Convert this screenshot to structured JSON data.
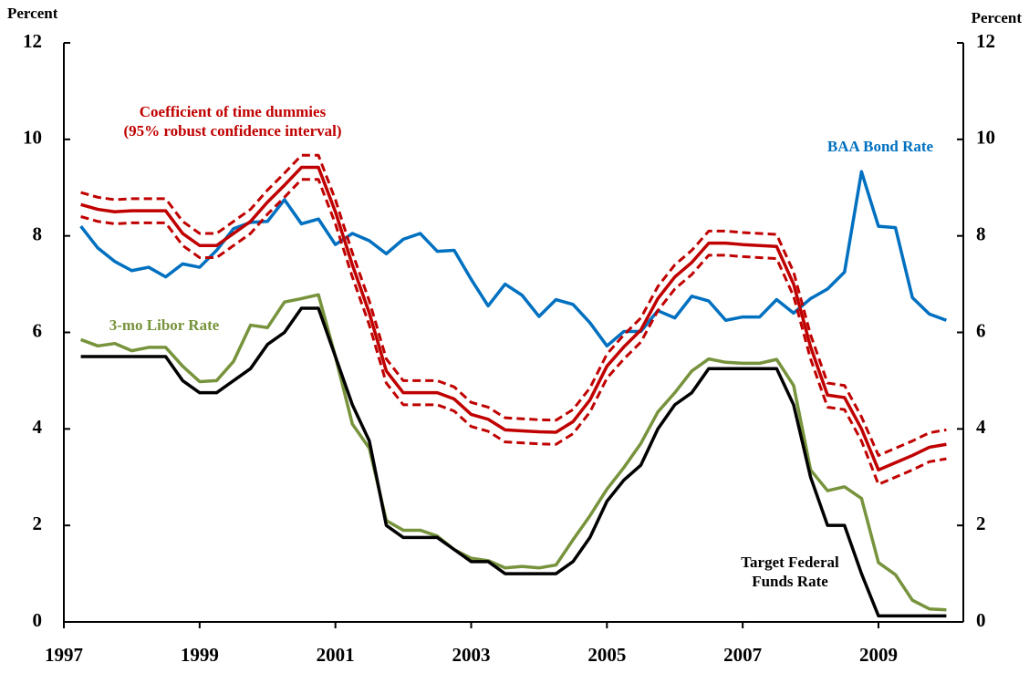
{
  "chart_data": {
    "type": "line",
    "ylabel": "Percent",
    "y2label": "Percent",
    "xlim": [
      1997,
      2010.25
    ],
    "xticks": [
      1997,
      1999,
      2001,
      2003,
      2005,
      2007,
      2009
    ],
    "ylim": [
      0,
      12
    ],
    "yticks": [
      0,
      2,
      4,
      6,
      8,
      10,
      12
    ],
    "y2lim": [
      0,
      12
    ],
    "y2ticks": [
      0,
      2,
      4,
      6,
      8,
      10,
      12
    ],
    "x": [
      1997.25,
      1997.5,
      1997.75,
      1998,
      1998.25,
      1998.5,
      1998.75,
      1999,
      1999.25,
      1999.5,
      1999.75,
      2000,
      2000.25,
      2000.5,
      2000.75,
      2001,
      2001.25,
      2001.5,
      2001.75,
      2002,
      2002.25,
      2002.5,
      2002.75,
      2003,
      2003.25,
      2003.5,
      2003.75,
      2004,
      2004.25,
      2004.5,
      2004.75,
      2005,
      2005.25,
      2005.5,
      2005.75,
      2006,
      2006.25,
      2006.5,
      2006.75,
      2007,
      2007.25,
      2007.5,
      2007.75,
      2008,
      2008.25,
      2008.5,
      2008.75,
      2009,
      2009.25,
      2009.5,
      2009.75,
      2010
    ],
    "series": [
      {
        "name": [
          "BAA Bond Rate"
        ],
        "color": "#0070c0",
        "values": [
          8.2,
          7.75,
          7.47,
          7.28,
          7.35,
          7.15,
          7.42,
          7.35,
          7.7,
          8.15,
          8.28,
          8.3,
          8.75,
          8.25,
          8.35,
          7.82,
          8.05,
          7.9,
          7.63,
          7.93,
          8.05,
          7.68,
          7.7,
          7.1,
          6.55,
          7.0,
          6.77,
          6.33,
          6.68,
          6.58,
          6.2,
          5.72,
          6.02,
          6.02,
          6.45,
          6.3,
          6.75,
          6.65,
          6.25,
          6.32,
          6.32,
          6.68,
          6.4,
          6.7,
          6.9,
          7.25,
          9.33,
          8.2,
          8.17,
          6.72,
          6.38,
          6.25
        ]
      },
      {
        "name": [
          "3-mo Libor Rate"
        ],
        "color": "#77933c",
        "values": [
          5.85,
          5.72,
          5.77,
          5.62,
          5.69,
          5.69,
          5.3,
          4.98,
          5.0,
          5.4,
          6.15,
          6.1,
          6.63,
          6.7,
          6.78,
          5.5,
          4.1,
          3.6,
          2.1,
          1.9,
          1.9,
          1.78,
          1.5,
          1.32,
          1.27,
          1.12,
          1.15,
          1.12,
          1.18,
          1.7,
          2.2,
          2.75,
          3.2,
          3.7,
          4.35,
          4.75,
          5.2,
          5.45,
          5.38,
          5.36,
          5.36,
          5.44,
          4.9,
          3.15,
          2.72,
          2.8,
          2.56,
          1.23,
          0.98,
          0.45,
          0.27,
          0.25
        ]
      },
      {
        "name": [
          "Target Federal",
          "Funds Rate"
        ],
        "color": "#000000",
        "values": [
          5.5,
          5.5,
          5.5,
          5.5,
          5.5,
          5.5,
          5.0,
          4.75,
          4.75,
          5.0,
          5.25,
          5.75,
          6.0,
          6.5,
          6.5,
          5.5,
          4.5,
          3.75,
          2.0,
          1.75,
          1.75,
          1.75,
          1.5,
          1.25,
          1.25,
          1.0,
          1.0,
          1.0,
          1.0,
          1.25,
          1.75,
          2.5,
          2.94,
          3.25,
          4.0,
          4.5,
          4.75,
          5.25,
          5.25,
          5.25,
          5.25,
          5.25,
          4.5,
          3.0,
          2.0,
          2.0,
          1.0,
          0.125,
          0.125,
          0.125,
          0.125,
          0.125
        ]
      },
      {
        "color": "#c00000",
        "dashed": true,
        "values": [
          8.9,
          8.8,
          8.75,
          8.77,
          8.77,
          8.77,
          8.3,
          8.05,
          8.05,
          8.3,
          8.55,
          8.95,
          9.3,
          9.67,
          9.67,
          8.75,
          7.65,
          6.65,
          5.45,
          5.0,
          5.0,
          5.0,
          4.87,
          4.55,
          4.45,
          4.23,
          4.21,
          4.19,
          4.18,
          4.4,
          4.85,
          5.55,
          5.95,
          6.3,
          6.95,
          7.4,
          7.7,
          8.1,
          8.1,
          8.07,
          8.05,
          8.03,
          7.25,
          5.95,
          4.95,
          4.9,
          4.25,
          3.45,
          3.6,
          3.75,
          3.92,
          3.98
        ]
      },
      {
        "color": "#c00000",
        "dashed": true,
        "values": [
          8.4,
          8.3,
          8.25,
          8.27,
          8.27,
          8.27,
          7.8,
          7.55,
          7.55,
          7.8,
          8.05,
          8.45,
          8.8,
          9.17,
          9.17,
          8.25,
          7.15,
          6.15,
          4.95,
          4.5,
          4.5,
          4.5,
          4.37,
          4.05,
          3.95,
          3.73,
          3.71,
          3.69,
          3.68,
          3.9,
          4.35,
          5.05,
          5.45,
          5.8,
          6.45,
          6.9,
          7.2,
          7.6,
          7.6,
          7.57,
          7.55,
          7.53,
          6.75,
          5.45,
          4.45,
          4.4,
          3.75,
          2.85,
          3.0,
          3.15,
          3.32,
          3.38
        ]
      },
      {
        "name": [
          "Coefficient of time dummies",
          "(95% robust confidence interval)"
        ],
        "color": "#c00000",
        "values": [
          8.65,
          8.55,
          8.5,
          8.52,
          8.52,
          8.52,
          8.05,
          7.8,
          7.8,
          8.05,
          8.3,
          8.7,
          9.05,
          9.42,
          9.42,
          8.5,
          7.4,
          6.4,
          5.2,
          4.75,
          4.75,
          4.75,
          4.62,
          4.3,
          4.2,
          3.98,
          3.96,
          3.94,
          3.93,
          4.15,
          4.6,
          5.3,
          5.7,
          6.05,
          6.7,
          7.15,
          7.45,
          7.85,
          7.85,
          7.82,
          7.8,
          7.78,
          7.0,
          5.7,
          4.7,
          4.65,
          4.0,
          3.15,
          3.3,
          3.45,
          3.62,
          3.68
        ]
      }
    ]
  }
}
